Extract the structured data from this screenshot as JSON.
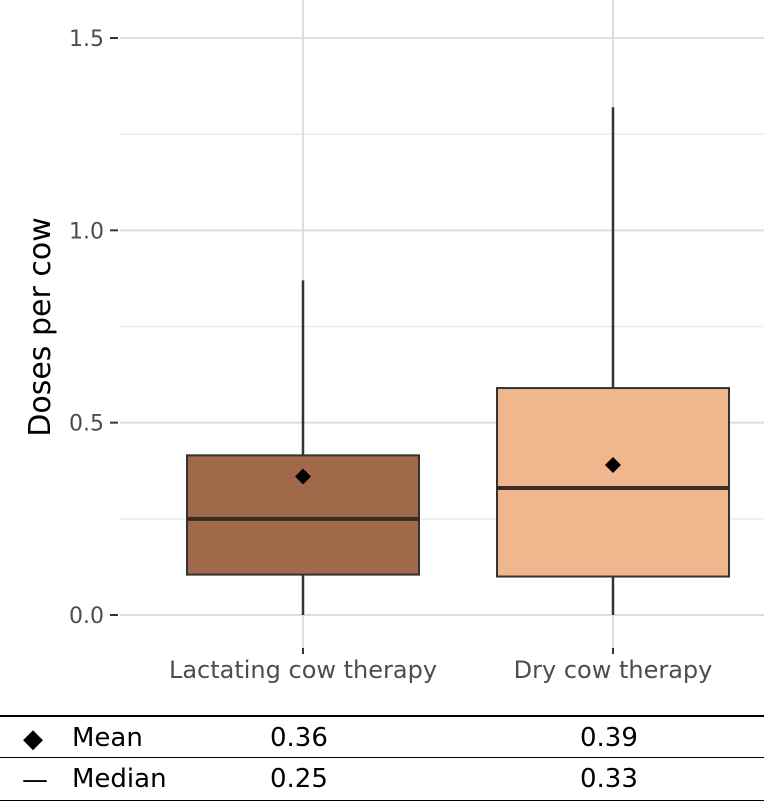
{
  "chart_data": {
    "type": "box",
    "ylabel": "Doses per cow",
    "xlabel": "",
    "ylim": [
      -0.07,
      1.6
    ],
    "yticks": [
      0.0,
      0.5,
      1.0,
      1.5
    ],
    "ytick_labels": [
      "0.0",
      "0.5",
      "1.0",
      "1.5"
    ],
    "categories": [
      "Lactating cow therapy",
      "Dry cow therapy"
    ],
    "boxes": [
      {
        "name": "Lactating cow therapy",
        "whisker_low": 0.0,
        "q1": 0.105,
        "median": 0.25,
        "q3": 0.415,
        "whisker_high": 0.87,
        "mean": 0.36,
        "color": "#a0694a"
      },
      {
        "name": "Dry cow therapy",
        "whisker_low": 0.0,
        "q1": 0.1,
        "median": 0.33,
        "q3": 0.59,
        "whisker_high": 1.32,
        "mean": 0.39,
        "color": "#f0b68c"
      }
    ],
    "grid": true
  },
  "stats": {
    "rows": [
      {
        "symbol": "◆",
        "label": "Mean",
        "values": [
          "0.36",
          "0.39"
        ]
      },
      {
        "symbol": "—",
        "label": "Median",
        "values": [
          "0.25",
          "0.33"
        ]
      }
    ]
  }
}
